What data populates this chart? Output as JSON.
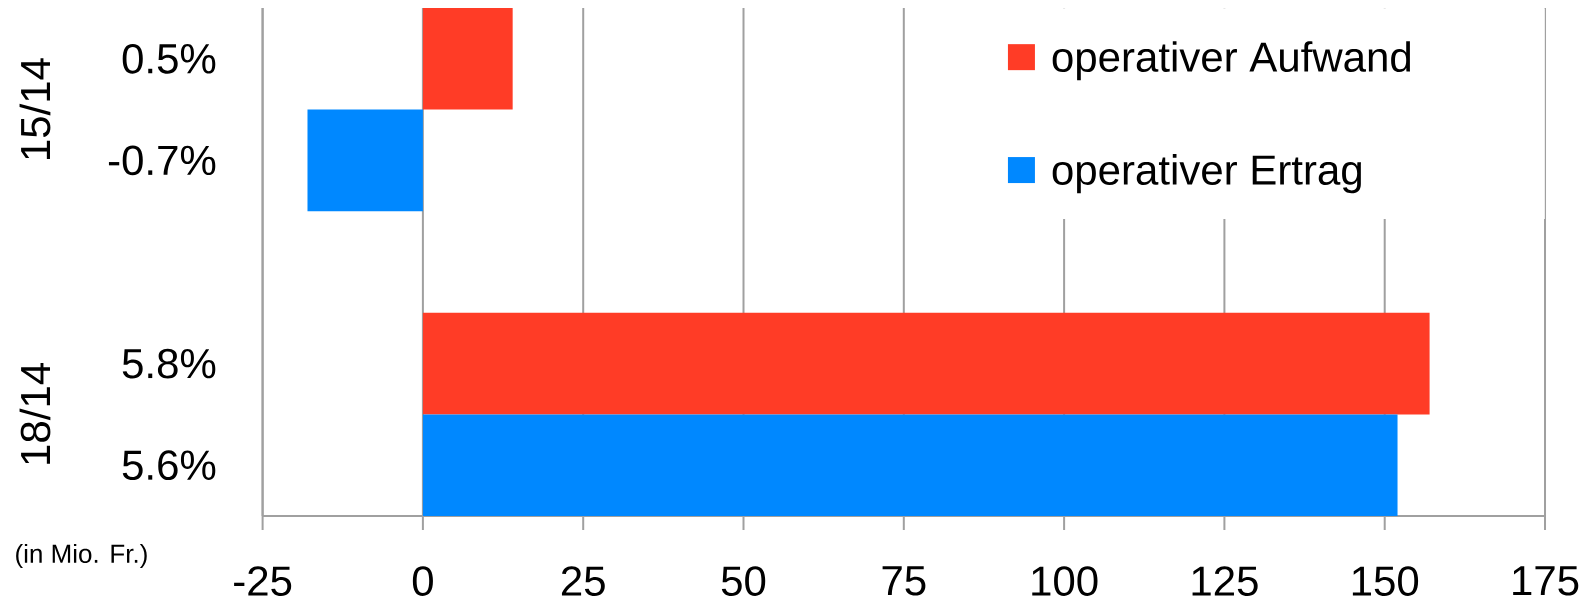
{
  "chart_data": {
    "type": "bar",
    "orientation": "horizontal",
    "categories": [
      "0.5%",
      "-0.7%",
      null,
      "5.8%",
      "5.6%"
    ],
    "series": [
      {
        "name": "operativer Aufwand",
        "color": "#ff3c26",
        "values": [
          14,
          null,
          null,
          157,
          null
        ]
      },
      {
        "name": "operativer Ertrag",
        "color": "#0088ff",
        "values": [
          null,
          -18,
          null,
          null,
          152
        ]
      }
    ],
    "xlim": [
      -25,
      175
    ],
    "xticks": [
      -25,
      0,
      25,
      50,
      75,
      100,
      125,
      150,
      175
    ],
    "grid": "x",
    "legend": "top right",
    "annotations": [
      "15/14",
      "18/14",
      "(in Mio. Fr.)"
    ]
  }
}
